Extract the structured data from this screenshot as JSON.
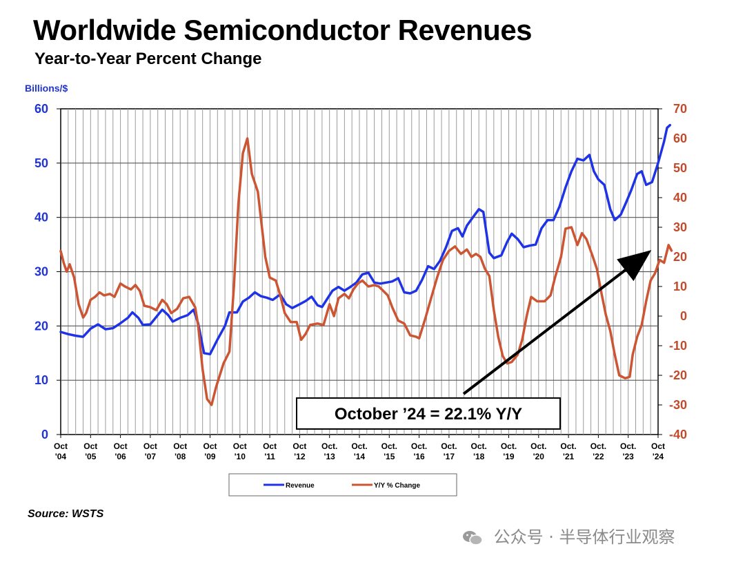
{
  "header": {
    "title": "Worldwide Semiconductor Revenues",
    "subtitle": "Year-to-Year Percent Change",
    "units": "Billions/$"
  },
  "footer": {
    "source": "Source: WSTS",
    "watermark": "公众号 · 半导体行业观察"
  },
  "callout": {
    "text": "October ’24 = 22.1% Y/Y"
  },
  "legend": {
    "revenue": "Revenue",
    "yoy": "Y/Y % Change"
  },
  "colors": {
    "revenue": "#1f33e6",
    "yoy": "#cc5533",
    "grid": "#9a9a9a"
  },
  "chart_data": {
    "type": "line",
    "title": "Worldwide Semiconductor Revenues",
    "subtitle": "Year-to-Year Percent Change",
    "ylabel_left": "Billions/$",
    "ylim_left": [
      0,
      60
    ],
    "ylim_right": [
      -40,
      70
    ],
    "yticks_left": [
      "0",
      "10",
      "20",
      "30",
      "40",
      "50",
      "60"
    ],
    "yticks_right": [
      "-40",
      "-30",
      "-20",
      "-10",
      "0",
      "10",
      "20",
      "30",
      "40",
      "50",
      "60",
      "70"
    ],
    "xticks": [
      [
        "Oct",
        "'04"
      ],
      [
        "Oct",
        "'05"
      ],
      [
        "Oct",
        "'06"
      ],
      [
        "Oct",
        "'07"
      ],
      [
        "Oct",
        "'08"
      ],
      [
        "Oct",
        "'09"
      ],
      [
        "Oct",
        "'10"
      ],
      [
        "Oct",
        "'11"
      ],
      [
        "Oct",
        "'12"
      ],
      [
        "Oct.",
        "'13"
      ],
      [
        "Oct.",
        "'14"
      ],
      [
        "Oct.",
        "'15"
      ],
      [
        "Oct.",
        "'16"
      ],
      [
        "Oct.",
        "'17"
      ],
      [
        "Oct.",
        "'18"
      ],
      [
        "Oct.",
        "'19"
      ],
      [
        "Oct.",
        "'20"
      ],
      [
        "Oct.",
        "'21"
      ],
      [
        "Oct.",
        "'22"
      ],
      [
        "Oct.",
        "'23"
      ],
      [
        "Oct",
        "'24"
      ]
    ],
    "grid": true,
    "legend_position": "bottom-center",
    "series": [
      {
        "name": "Revenue",
        "axis": "left",
        "points": [
          [
            0,
            18.9
          ],
          [
            0.25,
            18.5
          ],
          [
            0.5,
            18.2
          ],
          [
            0.75,
            18.0
          ],
          [
            1.0,
            19.5
          ],
          [
            1.25,
            20.3
          ],
          [
            1.5,
            19.4
          ],
          [
            1.75,
            19.6
          ],
          [
            2.0,
            20.5
          ],
          [
            2.25,
            21.5
          ],
          [
            2.4,
            22.5
          ],
          [
            2.6,
            21.5
          ],
          [
            2.75,
            20.2
          ],
          [
            3.0,
            20.3
          ],
          [
            3.25,
            22.0
          ],
          [
            3.4,
            23.0
          ],
          [
            3.6,
            22.0
          ],
          [
            3.75,
            20.8
          ],
          [
            4.0,
            21.5
          ],
          [
            4.25,
            22.0
          ],
          [
            4.45,
            23.0
          ],
          [
            4.6,
            20.5
          ],
          [
            4.8,
            15.0
          ],
          [
            5.0,
            14.8
          ],
          [
            5.25,
            17.5
          ],
          [
            5.5,
            20.0
          ],
          [
            5.65,
            22.5
          ],
          [
            5.9,
            22.5
          ],
          [
            6.1,
            24.5
          ],
          [
            6.3,
            25.2
          ],
          [
            6.5,
            26.2
          ],
          [
            6.7,
            25.5
          ],
          [
            6.9,
            25.2
          ],
          [
            7.1,
            24.8
          ],
          [
            7.35,
            25.8
          ],
          [
            7.55,
            24.0
          ],
          [
            7.75,
            23.3
          ],
          [
            8.0,
            24.0
          ],
          [
            8.2,
            24.6
          ],
          [
            8.4,
            25.4
          ],
          [
            8.6,
            23.8
          ],
          [
            8.75,
            23.5
          ],
          [
            8.9,
            24.8
          ],
          [
            9.1,
            26.5
          ],
          [
            9.3,
            27.2
          ],
          [
            9.5,
            26.5
          ],
          [
            9.7,
            27.2
          ],
          [
            9.9,
            28.0
          ],
          [
            10.1,
            29.5
          ],
          [
            10.3,
            29.8
          ],
          [
            10.5,
            28.0
          ],
          [
            10.7,
            27.8
          ],
          [
            10.9,
            28.0
          ],
          [
            11.1,
            28.2
          ],
          [
            11.3,
            28.8
          ],
          [
            11.5,
            26.2
          ],
          [
            11.7,
            26.0
          ],
          [
            11.9,
            26.5
          ],
          [
            12.1,
            28.5
          ],
          [
            12.3,
            31.0
          ],
          [
            12.5,
            30.5
          ],
          [
            12.7,
            32.0
          ],
          [
            12.9,
            34.5
          ],
          [
            13.1,
            37.5
          ],
          [
            13.3,
            38.0
          ],
          [
            13.45,
            36.5
          ],
          [
            13.6,
            38.5
          ],
          [
            13.8,
            40.0
          ],
          [
            14.0,
            41.5
          ],
          [
            14.15,
            41.0
          ],
          [
            14.35,
            33.5
          ],
          [
            14.5,
            32.5
          ],
          [
            14.75,
            33.0
          ],
          [
            14.95,
            35.5
          ],
          [
            15.1,
            37.0
          ],
          [
            15.3,
            36.0
          ],
          [
            15.5,
            34.5
          ],
          [
            15.7,
            34.8
          ],
          [
            15.9,
            35.0
          ],
          [
            16.1,
            38.0
          ],
          [
            16.3,
            39.5
          ],
          [
            16.5,
            39.5
          ],
          [
            16.7,
            42.0
          ],
          [
            16.9,
            45.5
          ],
          [
            17.1,
            48.5
          ],
          [
            17.3,
            50.8
          ],
          [
            17.5,
            50.5
          ],
          [
            17.7,
            51.5
          ],
          [
            17.85,
            48.5
          ],
          [
            18.0,
            47.0
          ],
          [
            18.2,
            46.0
          ],
          [
            18.4,
            41.5
          ],
          [
            18.55,
            39.5
          ],
          [
            18.75,
            40.5
          ],
          [
            18.95,
            43.0
          ],
          [
            19.1,
            45.0
          ],
          [
            19.3,
            48.0
          ],
          [
            19.45,
            48.5
          ],
          [
            19.6,
            46.0
          ],
          [
            19.8,
            46.5
          ],
          [
            20.0,
            50.0
          ],
          [
            20.2,
            54.0
          ],
          [
            20.3,
            56.5
          ],
          [
            20.4,
            57.0
          ]
        ]
      },
      {
        "name": "Y/Y % Change",
        "axis": "right",
        "points": [
          [
            0,
            22.0
          ],
          [
            0.1,
            18.0
          ],
          [
            0.2,
            15.0
          ],
          [
            0.3,
            17.5
          ],
          [
            0.45,
            13.0
          ],
          [
            0.6,
            4.0
          ],
          [
            0.75,
            -0.5
          ],
          [
            0.85,
            1.0
          ],
          [
            1.0,
            5.5
          ],
          [
            1.15,
            6.5
          ],
          [
            1.3,
            8.0
          ],
          [
            1.45,
            7.0
          ],
          [
            1.65,
            7.5
          ],
          [
            1.8,
            6.5
          ],
          [
            2.0,
            11.0
          ],
          [
            2.15,
            10.0
          ],
          [
            2.35,
            9.0
          ],
          [
            2.5,
            10.5
          ],
          [
            2.65,
            8.5
          ],
          [
            2.8,
            3.5
          ],
          [
            3.0,
            3.0
          ],
          [
            3.2,
            2.0
          ],
          [
            3.4,
            5.5
          ],
          [
            3.55,
            4.0
          ],
          [
            3.7,
            1.0
          ],
          [
            3.9,
            2.5
          ],
          [
            4.1,
            6.0
          ],
          [
            4.3,
            6.5
          ],
          [
            4.5,
            3.0
          ],
          [
            4.6,
            -3.0
          ],
          [
            4.75,
            -18.0
          ],
          [
            4.9,
            -28.0
          ],
          [
            5.05,
            -30.0
          ],
          [
            5.2,
            -24.0
          ],
          [
            5.45,
            -16.0
          ],
          [
            5.65,
            -12.0
          ],
          [
            5.8,
            10.0
          ],
          [
            5.95,
            38.0
          ],
          [
            6.1,
            55.0
          ],
          [
            6.25,
            60.0
          ],
          [
            6.4,
            48.0
          ],
          [
            6.6,
            42.0
          ],
          [
            6.85,
            20.0
          ],
          [
            7.0,
            13.0
          ],
          [
            7.2,
            12.0
          ],
          [
            7.35,
            7.0
          ],
          [
            7.5,
            1.0
          ],
          [
            7.7,
            -2.0
          ],
          [
            7.9,
            -2.0
          ],
          [
            8.05,
            -8.0
          ],
          [
            8.2,
            -6.0
          ],
          [
            8.35,
            -3.0
          ],
          [
            8.6,
            -2.5
          ],
          [
            8.8,
            -3.0
          ],
          [
            9.0,
            4.0
          ],
          [
            9.15,
            0.0
          ],
          [
            9.3,
            6.0
          ],
          [
            9.5,
            7.5
          ],
          [
            9.65,
            6.0
          ],
          [
            9.8,
            9.0
          ],
          [
            9.95,
            11.0
          ],
          [
            10.1,
            12.0
          ],
          [
            10.3,
            10.0
          ],
          [
            10.5,
            10.5
          ],
          [
            10.65,
            10.0
          ],
          [
            10.8,
            8.5
          ],
          [
            10.95,
            7.0
          ],
          [
            11.1,
            3.0
          ],
          [
            11.3,
            -1.5
          ],
          [
            11.5,
            -2.5
          ],
          [
            11.7,
            -6.5
          ],
          [
            11.9,
            -7.0
          ],
          [
            12.0,
            -7.5
          ],
          [
            12.2,
            -1.0
          ],
          [
            12.4,
            6.0
          ],
          [
            12.6,
            13.0
          ],
          [
            12.8,
            19.0
          ],
          [
            13.0,
            22.0
          ],
          [
            13.2,
            23.5
          ],
          [
            13.4,
            21.0
          ],
          [
            13.6,
            22.5
          ],
          [
            13.75,
            20.0
          ],
          [
            13.9,
            21.0
          ],
          [
            14.05,
            20.0
          ],
          [
            14.2,
            16.0
          ],
          [
            14.35,
            13.5
          ],
          [
            14.5,
            2.0
          ],
          [
            14.65,
            -7.0
          ],
          [
            14.8,
            -13.5
          ],
          [
            14.95,
            -16.0
          ],
          [
            15.1,
            -15.5
          ],
          [
            15.3,
            -13.0
          ],
          [
            15.45,
            -8.0
          ],
          [
            15.6,
            0.0
          ],
          [
            15.75,
            6.5
          ],
          [
            15.95,
            5.0
          ],
          [
            16.2,
            5.0
          ],
          [
            16.4,
            7.0
          ],
          [
            16.55,
            13.0
          ],
          [
            16.75,
            20.0
          ],
          [
            16.9,
            29.5
          ],
          [
            17.1,
            30.0
          ],
          [
            17.3,
            24.0
          ],
          [
            17.45,
            28.0
          ],
          [
            17.6,
            26.0
          ],
          [
            17.8,
            20.5
          ],
          [
            17.95,
            16.0
          ],
          [
            18.1,
            8.0
          ],
          [
            18.25,
            0.5
          ],
          [
            18.4,
            -5.0
          ],
          [
            18.55,
            -13.0
          ],
          [
            18.7,
            -20.0
          ],
          [
            18.9,
            -21.0
          ],
          [
            19.05,
            -20.5
          ],
          [
            19.15,
            -13.0
          ],
          [
            19.3,
            -7.0
          ],
          [
            19.45,
            -3.0
          ],
          [
            19.6,
            5.0
          ],
          [
            19.75,
            12.0
          ],
          [
            19.9,
            14.5
          ],
          [
            20.05,
            19.0
          ],
          [
            20.2,
            18.0
          ],
          [
            20.35,
            24.0
          ],
          [
            20.45,
            22.1
          ]
        ]
      }
    ]
  }
}
